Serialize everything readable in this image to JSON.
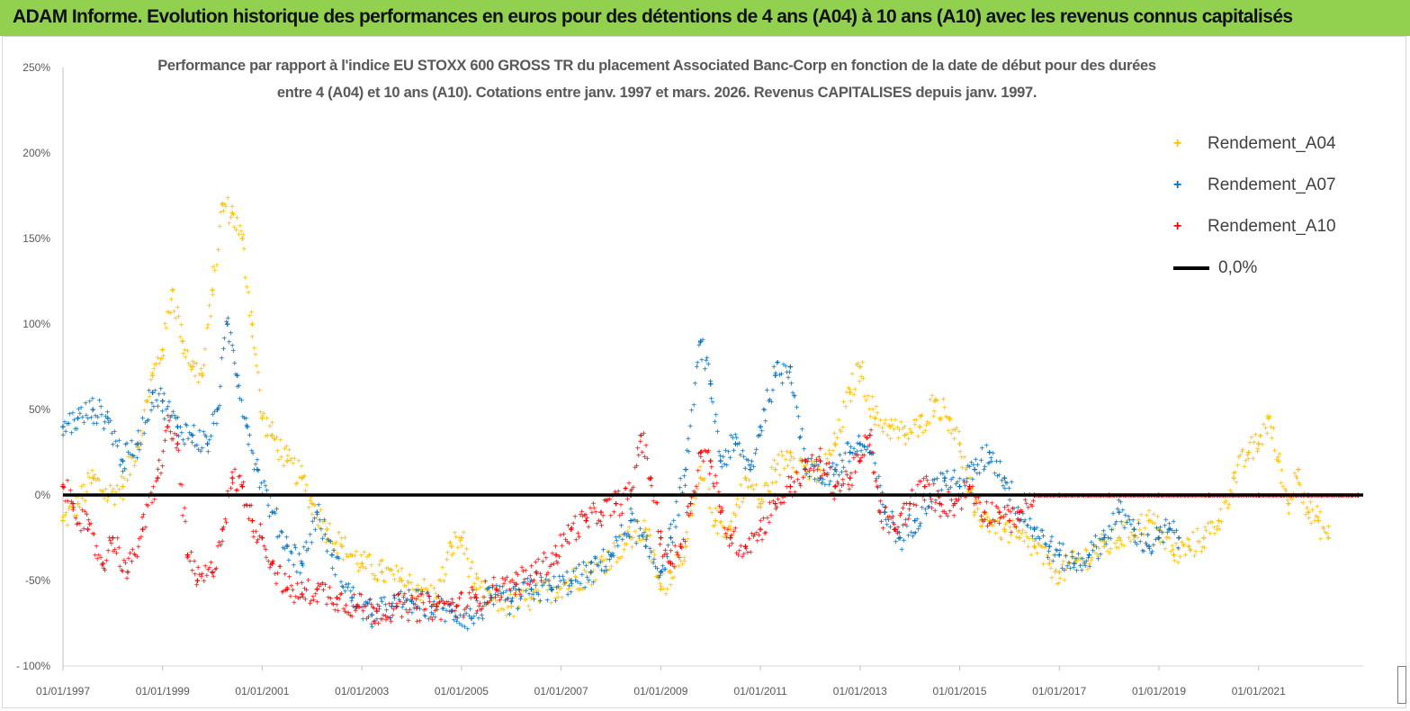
{
  "banner": {
    "title": "ADAM Informe. Evolution historique des performances en euros pour des détentions de 4 ans (A04) à 10 ans (A10) avec les revenus connus capitalisés",
    "color": "#92d050"
  },
  "chart_data": {
    "type": "scatter",
    "title_line1": "Performance par rapport à l'indice EU STOXX 600 GROSS TR  du placement Associated Banc-Corp en fonction de la date de début pour des durées",
    "title_line2": "entre 4 (A04) et 10 ans (A10). Cotations entre janv. 1997 et mars. 2026. Revenus CAPITALISES depuis janv. 1997.",
    "xlabel": "",
    "ylabel": "",
    "xlim": [
      1997.0,
      2023.1
    ],
    "ylim": [
      -100,
      250
    ],
    "y_ticks": [
      {
        "value": 250,
        "label": "250%"
      },
      {
        "value": 200,
        "label": "200%"
      },
      {
        "value": 150,
        "label": "150%"
      },
      {
        "value": 100,
        "label": "100%"
      },
      {
        "value": 50,
        "label": "50%"
      },
      {
        "value": 0,
        "label": "0%"
      },
      {
        "value": -50,
        "label": "-50%"
      },
      {
        "value": -100,
        "label": "- 100%"
      }
    ],
    "x_ticks": [
      {
        "value": 1997,
        "label": "01/01/1997"
      },
      {
        "value": 1999,
        "label": "01/01/1999"
      },
      {
        "value": 2001,
        "label": "01/01/2001"
      },
      {
        "value": 2003,
        "label": "01/01/2003"
      },
      {
        "value": 2005,
        "label": "01/01/2005"
      },
      {
        "value": 2007,
        "label": "01/01/2007"
      },
      {
        "value": 2009,
        "label": "01/01/2009"
      },
      {
        "value": 2011,
        "label": "01/01/2011"
      },
      {
        "value": 2013,
        "label": "01/01/2013"
      },
      {
        "value": 2015,
        "label": "01/01/2015"
      },
      {
        "value": 2017,
        "label": "01/01/2017"
      },
      {
        "value": 2019,
        "label": "01/01/2019"
      },
      {
        "value": 2021,
        "label": "01/01/2021"
      }
    ],
    "series": [
      {
        "name": "Rendement_A04",
        "color": "#ffc000",
        "x": [
          1997.0,
          1997.3,
          1997.6,
          1997.9,
          1998.2,
          1998.5,
          1998.8,
          1999.0,
          1999.2,
          1999.4,
          1999.6,
          1999.8,
          2000.0,
          2000.2,
          2000.4,
          2000.6,
          2000.8,
          2001.0,
          2001.2,
          2001.5,
          2001.8,
          2002.0,
          2002.3,
          2002.6,
          2003.0,
          2003.4,
          2003.8,
          2004.2,
          2004.5,
          2004.8,
          2005.0,
          2005.3,
          2005.6,
          2006.0,
          2006.4,
          2006.8,
          2007.2,
          2007.6,
          2008.0,
          2008.4,
          2008.7,
          2009.0,
          2009.2,
          2009.5,
          2009.8,
          2010.1,
          2010.4,
          2010.7,
          2011.0,
          2011.3,
          2011.6,
          2011.9,
          2012.2,
          2012.5,
          2012.8,
          2013.0,
          2013.3,
          2013.6,
          2013.9,
          2014.2,
          2014.5,
          2014.8,
          2015.0,
          2015.3,
          2015.6,
          2015.9,
          2016.2,
          2016.5,
          2016.8,
          2017.0,
          2017.3,
          2017.6,
          2017.9,
          2018.2,
          2018.5,
          2018.8,
          2019.0,
          2019.3,
          2019.6,
          2019.9,
          2020.2,
          2020.5,
          2020.8,
          2021.0,
          2021.2,
          2021.4,
          2021.6,
          2021.8,
          2022.0,
          2022.2,
          2022.4
        ],
        "values": [
          -15,
          -5,
          10,
          0,
          5,
          30,
          70,
          85,
          120,
          90,
          75,
          70,
          120,
          170,
          165,
          150,
          100,
          45,
          35,
          20,
          10,
          -5,
          -20,
          -30,
          -40,
          -45,
          -50,
          -55,
          -60,
          -30,
          -25,
          -55,
          -60,
          -65,
          -60,
          -55,
          -50,
          -45,
          -35,
          -25,
          -20,
          -55,
          -45,
          -30,
          10,
          -15,
          -20,
          10,
          -5,
          15,
          25,
          15,
          10,
          30,
          60,
          75,
          45,
          40,
          35,
          40,
          55,
          45,
          30,
          -10,
          -15,
          -20,
          -25,
          -30,
          -40,
          -45,
          -40,
          -35,
          -30,
          -25,
          -20,
          -15,
          -20,
          -35,
          -30,
          -25,
          -15,
          10,
          25,
          30,
          45,
          20,
          -5,
          15,
          -10,
          -15,
          -25
        ]
      },
      {
        "name": "Rendement_A07",
        "color": "#0070c0",
        "x": [
          1997.0,
          1997.3,
          1997.6,
          1997.9,
          1998.2,
          1998.5,
          1998.8,
          1999.0,
          1999.3,
          1999.6,
          1999.9,
          2000.1,
          2000.3,
          2000.5,
          2000.7,
          2000.9,
          2001.2,
          2001.5,
          2001.8,
          2002.1,
          2002.4,
          2002.8,
          2003.2,
          2003.6,
          2004.0,
          2004.4,
          2004.8,
          2005.2,
          2005.6,
          2006.0,
          2006.4,
          2006.8,
          2007.2,
          2007.6,
          2008.0,
          2008.4,
          2008.7,
          2009.0,
          2009.2,
          2009.5,
          2009.8,
          2010.0,
          2010.2,
          2010.5,
          2010.8,
          2011.0,
          2011.3,
          2011.6,
          2011.9,
          2012.2,
          2012.5,
          2012.8,
          2013.0,
          2013.2,
          2013.5,
          2013.8,
          2014.1,
          2014.4,
          2014.7,
          2015.0,
          2015.3,
          2015.6,
          2015.9,
          2016.2,
          2016.5,
          2016.8,
          2017.0,
          2017.3,
          2017.6,
          2017.9,
          2018.2,
          2018.5,
          2018.8,
          2019.0,
          2019.2,
          2019.4
        ],
        "values": [
          40,
          45,
          50,
          45,
          20,
          30,
          60,
          55,
          40,
          35,
          30,
          50,
          100,
          70,
          40,
          15,
          -10,
          -30,
          -40,
          -10,
          -35,
          -60,
          -70,
          -65,
          -62,
          -65,
          -68,
          -72,
          -60,
          -62,
          -55,
          -55,
          -50,
          -45,
          -35,
          -15,
          -30,
          -45,
          -25,
          15,
          90,
          65,
          20,
          30,
          15,
          40,
          70,
          75,
          20,
          10,
          15,
          25,
          30,
          25,
          -10,
          -25,
          -15,
          0,
          10,
          5,
          15,
          25,
          10,
          -10,
          -20,
          -30,
          -35,
          -40,
          -35,
          -25,
          -10,
          -20,
          -30,
          -25,
          -20,
          -25
        ]
      },
      {
        "name": "Rendement_A10",
        "color": "#ff0000",
        "x": [
          1997.0,
          1997.2,
          1997.5,
          1997.8,
          1998.0,
          1998.3,
          1998.6,
          1998.9,
          1999.1,
          1999.3,
          1999.5,
          1999.7,
          2000.0,
          2000.2,
          2000.4,
          2000.6,
          2000.8,
          2001.0,
          2001.2,
          2001.5,
          2001.8,
          2002.1,
          2002.5,
          2002.9,
          2003.3,
          2003.7,
          2004.1,
          2004.5,
          2004.9,
          2005.3,
          2005.7,
          2006.1,
          2006.5,
          2006.9,
          2007.2,
          2007.5,
          2007.8,
          2008.1,
          2008.4,
          2008.6,
          2008.8,
          2009.0,
          2009.2,
          2009.4,
          2009.6,
          2009.8,
          2010.0,
          2010.2,
          2010.4,
          2010.7,
          2011.0,
          2011.3,
          2011.6,
          2011.9,
          2012.2,
          2012.5,
          2012.8,
          2013.0,
          2013.2,
          2013.4,
          2013.7,
          2014.0,
          2014.3,
          2014.6,
          2014.9,
          2015.2,
          2015.5,
          2015.8,
          2016.0,
          2016.2,
          2016.5,
          2017.0,
          2018.0,
          2019.0,
          2020.0,
          2021.0,
          2022.0,
          2023.0
        ],
        "values": [
          5,
          -5,
          -20,
          -40,
          -25,
          -45,
          -20,
          10,
          40,
          30,
          -35,
          -50,
          -45,
          -20,
          10,
          5,
          -15,
          -25,
          -40,
          -55,
          -58,
          -55,
          -60,
          -65,
          -68,
          -65,
          -66,
          -65,
          -65,
          -60,
          -55,
          -52,
          -45,
          -35,
          -20,
          -15,
          -10,
          -5,
          0,
          35,
          10,
          -25,
          -40,
          -30,
          -5,
          25,
          20,
          -10,
          -25,
          -30,
          -20,
          -5,
          5,
          15,
          20,
          5,
          10,
          20,
          35,
          -10,
          -20,
          -5,
          5,
          -5,
          -5,
          5,
          -10,
          -10,
          -15,
          -10,
          0,
          0,
          0,
          0,
          0,
          0,
          0,
          0
        ]
      },
      {
        "name": "0,0%",
        "color": "#000000",
        "x": [
          1997.0,
          2023.1
        ],
        "values": [
          0,
          0
        ]
      }
    ],
    "legend": [
      "Rendement_A04",
      "Rendement_A07",
      "Rendement_A10",
      "0,0%"
    ],
    "legend_position": "top-right",
    "grid": false
  }
}
